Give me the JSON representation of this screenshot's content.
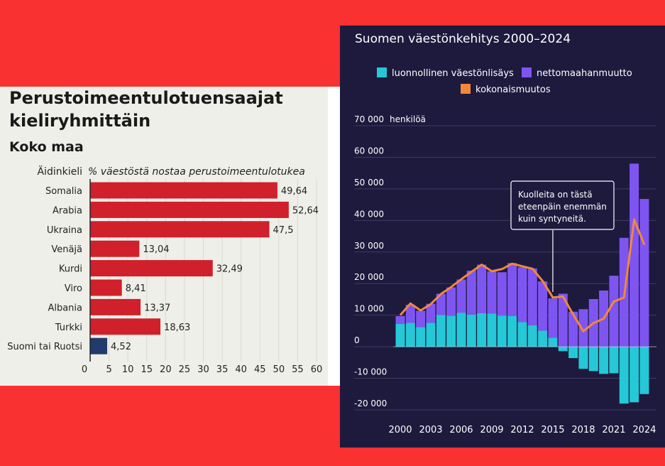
{
  "colors": {
    "red_band": "#f93131",
    "left_bg": "#efefe9",
    "bar_red": "#d0202b",
    "bar_blue": "#233a6e",
    "right_bg": "#1d1a3e",
    "natural": "#25c8d6",
    "migration": "#7f55f2",
    "total": "#f2883a"
  },
  "chart_data": [
    {
      "type": "bar",
      "title": "Perustoimeentulotuensaajat kieliryhmittäin",
      "subtitle": "Koko maa",
      "category_header": "Äidinkieli",
      "value_header": "% väestöstä nostaa perustoimeentulotukea",
      "categories": [
        "Somalia",
        "Arabia",
        "Ukraina",
        "Venäjä",
        "Kurdi",
        "Viro",
        "Albania",
        "Turkki",
        "Suomi tai Ruotsi"
      ],
      "values": [
        49.64,
        52.64,
        47.5,
        13.04,
        32.49,
        8.41,
        13.37,
        18.63,
        4.52
      ],
      "value_labels": [
        "49,64",
        "52,64",
        "47,5",
        "13,04",
        "32,49",
        "8,41",
        "13,37",
        "18,63",
        "4,52"
      ],
      "bar_colors": [
        "red",
        "red",
        "red",
        "red",
        "red",
        "red",
        "red",
        "red",
        "blue"
      ],
      "xlim": [
        0,
        60
      ],
      "xticks": [
        0,
        5,
        10,
        15,
        20,
        25,
        30,
        35,
        40,
        45,
        50,
        55,
        60
      ],
      "grid": true
    },
    {
      "type": "bar",
      "title": "Suomen väestönkehitys 2000–2024",
      "ylabel": "henkilöä",
      "annotation": "Kuolleita on tästä eteenpäin enemmän kuin syntyneitä.",
      "annotation_year": 2015,
      "x": [
        2000,
        2001,
        2002,
        2003,
        2004,
        2005,
        2006,
        2007,
        2008,
        2009,
        2010,
        2011,
        2012,
        2013,
        2014,
        2015,
        2016,
        2017,
        2018,
        2019,
        2020,
        2021,
        2022,
        2023,
        2024
      ],
      "xtick_labels": [
        "2000",
        "2003",
        "2006",
        "2009",
        "2012",
        "2015",
        "2018",
        "2021",
        "2024"
      ],
      "yticks": [
        -20000,
        -10000,
        0,
        10000,
        20000,
        30000,
        40000,
        50000,
        60000,
        70000
      ],
      "ytick_labels": [
        "-20 000",
        "-10 000",
        "0",
        "10 000",
        "20 000",
        "30 000",
        "40 000",
        "50 000",
        "60 000",
        "70 000"
      ],
      "ylim": [
        -20000,
        70000
      ],
      "legend_position": "top",
      "series": [
        {
          "name": "luonnollinen väestönlisäys",
          "kind": "bar",
          "color_key": "natural",
          "values": [
            7300,
            7600,
            6200,
            7600,
            10100,
            9800,
            10800,
            10200,
            10600,
            10500,
            9900,
            9700,
            7800,
            6800,
            5100,
            2900,
            -1400,
            -3600,
            -7000,
            -7700,
            -8600,
            -8400,
            -18000,
            -17600,
            -15000
          ]
        },
        {
          "name": "nettomaahanmuutto",
          "kind": "bar",
          "color_key": "migration",
          "values": [
            2400,
            5700,
            5200,
            6000,
            6700,
            9000,
            10500,
            13900,
            15400,
            13400,
            13700,
            16800,
            17400,
            18000,
            15600,
            12400,
            16800,
            11100,
            11900,
            15100,
            17800,
            22500,
            34500,
            58000,
            46800
          ]
        },
        {
          "name": "kokonaismuutos",
          "kind": "line",
          "color_key": "total",
          "values": [
            10000,
            13700,
            11500,
            13500,
            16700,
            18900,
            21400,
            23700,
            26000,
            23900,
            24600,
            26300,
            25500,
            24700,
            20800,
            15600,
            15900,
            10200,
            4900,
            7500,
            8900,
            14300,
            15600,
            40300,
            32300
          ]
        }
      ],
      "grid": true
    }
  ]
}
